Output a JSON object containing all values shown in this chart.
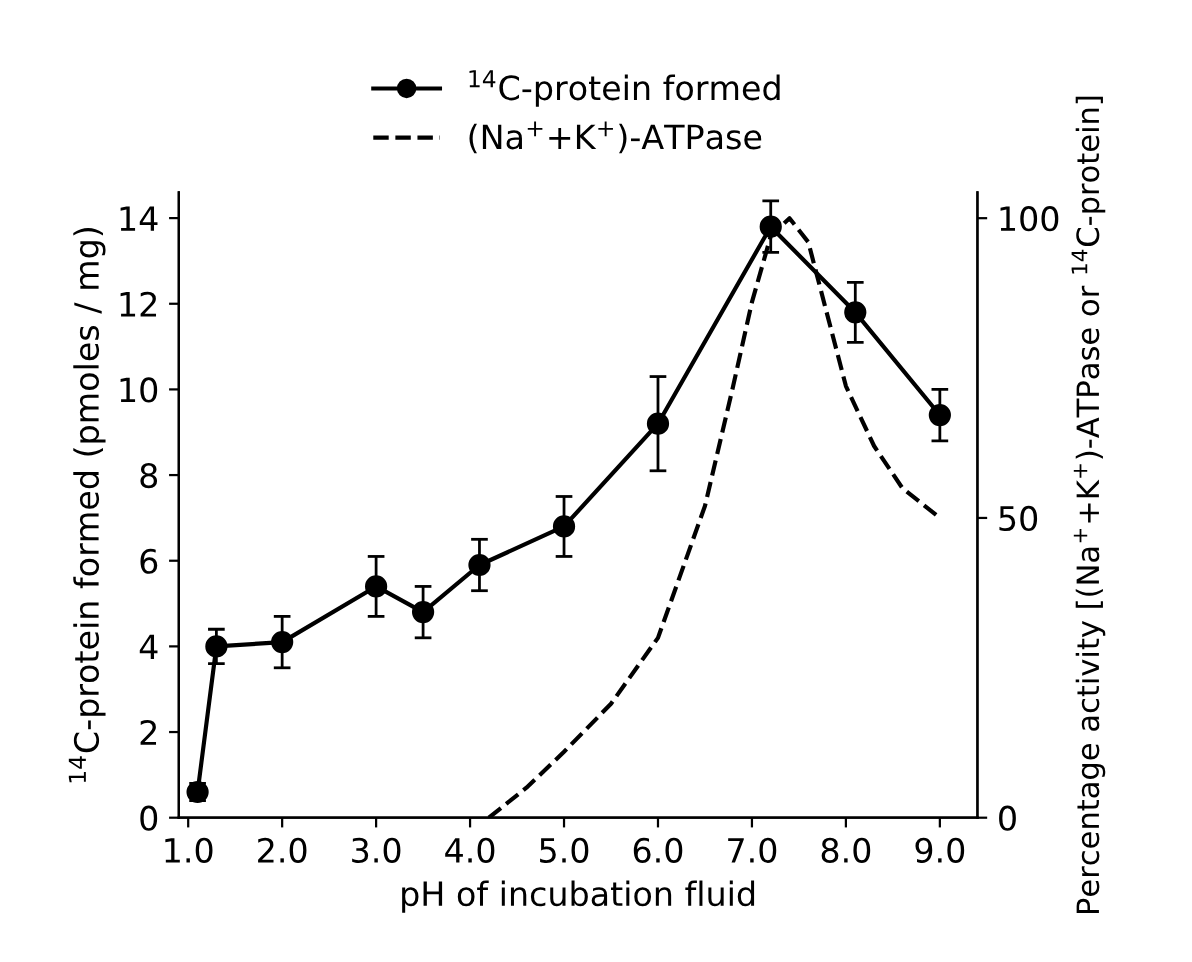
{
  "chart_data": {
    "type": "line",
    "xlabel": "pH of incubation fluid",
    "ylabel": "$^{14}$C-protein formed (pmoles / mg)",
    "y2label": "Percentage activity [(Na$^{+}$+K$^{+}$)-ATPase or $^{14}$C-protein]",
    "xlim": [
      0.9,
      9.4
    ],
    "ylim": [
      0,
      14.6
    ],
    "y2lim": [
      0,
      104.3
    ],
    "xticks": [
      {
        "value": 1,
        "label": "1.0"
      },
      {
        "value": 2,
        "label": "2.0"
      },
      {
        "value": 3,
        "label": "3.0"
      },
      {
        "value": 4,
        "label": "4.0"
      },
      {
        "value": 5,
        "label": "5.0"
      },
      {
        "value": 6,
        "label": "6.0"
      },
      {
        "value": 7,
        "label": "7.0"
      },
      {
        "value": 8,
        "label": "8.0"
      },
      {
        "value": 9,
        "label": "9.0"
      }
    ],
    "yticks": [
      0,
      2,
      4,
      6,
      8,
      10,
      12,
      14
    ],
    "y2ticks": [
      0,
      50,
      100
    ],
    "legend": "top",
    "grid": false,
    "series": [
      {
        "name": "$^{14}$C-protein formed",
        "color": "#000000",
        "marker": "circle",
        "line_style": "solid",
        "x": [
          1.1,
          1.3,
          2.0,
          3.0,
          3.5,
          4.1,
          5.0,
          6.0,
          7.2,
          8.1,
          9.0
        ],
        "values": [
          0.6,
          4.0,
          4.1,
          5.4,
          4.8,
          5.9,
          6.8,
          9.2,
          13.8,
          11.8,
          9.4
        ],
        "errors": [
          0.2,
          0.4,
          0.6,
          0.7,
          0.6,
          0.6,
          0.7,
          1.1,
          0.6,
          0.7,
          0.6
        ]
      },
      {
        "name": "(Na$^{+}$+K$^{+}$)-ATPase",
        "color": "#000000",
        "marker": "none",
        "line_style": "dashed",
        "axis": "y2",
        "x": [
          4.2,
          4.6,
          5.0,
          5.5,
          6.0,
          6.5,
          6.8,
          7.0,
          7.2,
          7.4,
          7.6,
          7.8,
          8.0,
          8.3,
          8.6,
          9.0
        ],
        "values": [
          0,
          5,
          11,
          19,
          30,
          52,
          72,
          86,
          97,
          100,
          96,
          84,
          72,
          62,
          55,
          50
        ]
      }
    ]
  }
}
